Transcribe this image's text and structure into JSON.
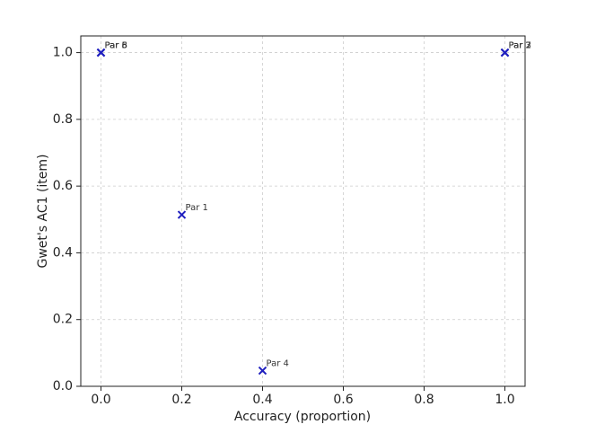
{
  "chart_data": {
    "type": "scatter",
    "xlabel": "Accuracy (proportion)",
    "ylabel": "Gwet's AC1 (item)",
    "x": [
      0.2,
      1.0,
      1.0,
      0.4,
      0.0,
      0.0,
      1.0,
      0.0
    ],
    "values": [
      0.514,
      1.0,
      1.0,
      0.047,
      1.0,
      1.0,
      1.0,
      1.0
    ],
    "point_labels": [
      "Par 1",
      "Par 2",
      "Par 3",
      "Par 4",
      "Par 5",
      "Par 6",
      "Par 7",
      "Par 8"
    ],
    "color": "#1f1fbf",
    "xlim": [
      -0.05,
      1.05
    ],
    "ylim": [
      0,
      1.05
    ],
    "xticks": [
      {
        "value": 0,
        "label": "0.0"
      },
      0.2,
      0.4,
      0.6,
      0.8,
      {
        "value": 1,
        "label": "1.0"
      }
    ],
    "yticks": [
      {
        "value": 0,
        "label": "0.0"
      },
      0.2,
      0.4,
      0.6,
      0.8,
      {
        "value": 1,
        "label": "1.0"
      }
    ],
    "grid": true
  }
}
